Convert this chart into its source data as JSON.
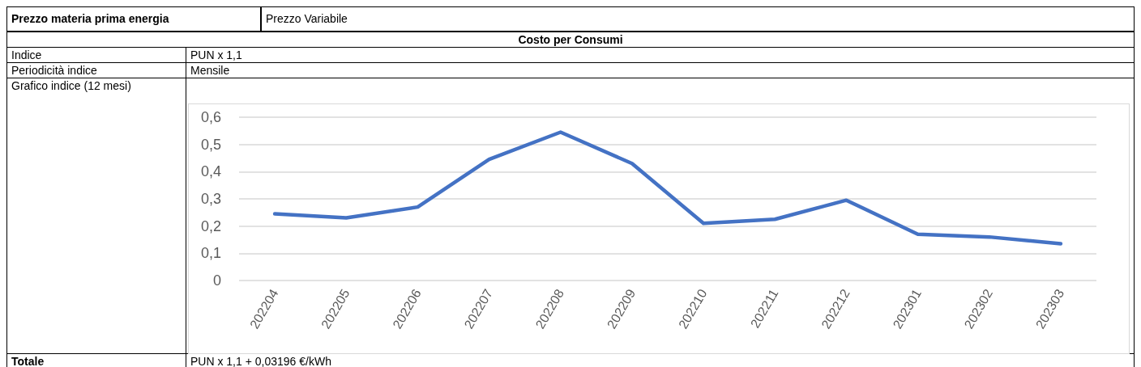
{
  "chart_data": {
    "type": "line",
    "categories": [
      "202204",
      "202205",
      "202206",
      "202207",
      "202208",
      "202209",
      "202210",
      "202211",
      "202212",
      "202301",
      "202302",
      "202303"
    ],
    "series": [
      {
        "color": "#4472c4",
        "values": [
          0.245,
          0.23,
          0.27,
          0.445,
          0.545,
          0.43,
          0.21,
          0.225,
          0.295,
          0.17,
          0.16,
          0.135
        ]
      }
    ],
    "ylim": [
      0,
      0.6
    ],
    "yticks": [
      0,
      {
        "value": 0.1,
        "label": "0,1"
      },
      {
        "value": 0.2,
        "label": "0,2"
      },
      {
        "value": 0.3,
        "label": "0,3"
      },
      {
        "value": 0.4,
        "label": "0,4"
      },
      {
        "value": 0.5,
        "label": "0,5"
      },
      {
        "value": 0.6,
        "label": "0,6"
      }
    ],
    "grid": "y",
    "marker": "none",
    "line_style": "solid",
    "annotations": [
      "Prezzo materia prima energia",
      "Prezzo Variabile",
      "Costo per Consumi",
      "Indice",
      "PUN x 1,1",
      "Periodicità indice",
      "Mensile",
      "Grafico indice (12 mesi)",
      "Totale",
      "PUN x 1,1 + 0,03196 €/kWh"
    ]
  }
}
